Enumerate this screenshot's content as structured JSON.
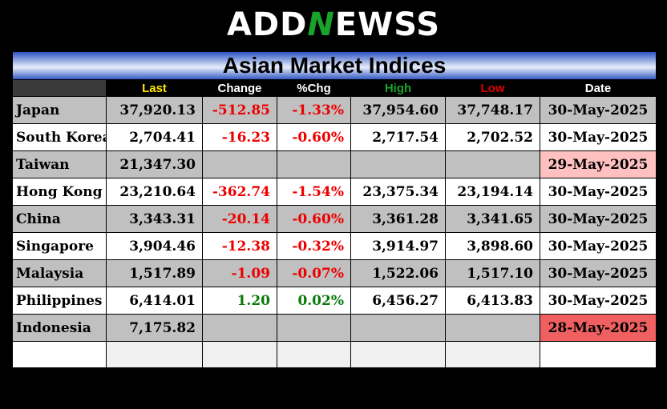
{
  "logo": {
    "before": "ADD",
    "accent": "N",
    "after": "EWSS",
    "accent_color": "#19a32a"
  },
  "title": "Asian Market Indices",
  "columns": [
    {
      "label": "",
      "color": "#ffffff"
    },
    {
      "label": "Last",
      "color": "#ffe600"
    },
    {
      "label": "Change",
      "color": "#ffffff"
    },
    {
      "label": "%Chg",
      "color": "#ffffff"
    },
    {
      "label": "High",
      "color": "#19a32a"
    },
    {
      "label": "Low",
      "color": "#e00000"
    },
    {
      "label": "Date",
      "color": "#ffffff"
    }
  ],
  "colors": {
    "negative": "#ee0000",
    "positive": "#0a7a0a",
    "date_stale_1": "#ffc0c0",
    "date_stale_2": "#f06060"
  },
  "rows": [
    {
      "name": "Japan",
      "last": "37,920.13",
      "change": "-512.85",
      "pct": "-1.33%",
      "high": "37,954.60",
      "low": "37,748.17",
      "date": "30-May-2025",
      "dir": "neg",
      "date_status": "current"
    },
    {
      "name": "South Korea",
      "last": "2,704.41",
      "change": "-16.23",
      "pct": "-0.60%",
      "high": "2,717.54",
      "low": "2,702.52",
      "date": "30-May-2025",
      "dir": "neg",
      "date_status": "current"
    },
    {
      "name": "Taiwan",
      "last": "21,347.30",
      "change": "",
      "pct": "",
      "high": "",
      "low": "",
      "date": "29-May-2025",
      "dir": "none",
      "date_status": "stale_1"
    },
    {
      "name": "Hong Kong",
      "last": "23,210.64",
      "change": "-362.74",
      "pct": "-1.54%",
      "high": "23,375.34",
      "low": "23,194.14",
      "date": "30-May-2025",
      "dir": "neg",
      "date_status": "current"
    },
    {
      "name": "China",
      "last": "3,343.31",
      "change": "-20.14",
      "pct": "-0.60%",
      "high": "3,361.28",
      "low": "3,341.65",
      "date": "30-May-2025",
      "dir": "neg",
      "date_status": "current"
    },
    {
      "name": "Singapore",
      "last": "3,904.46",
      "change": "-12.38",
      "pct": "-0.32%",
      "high": "3,914.97",
      "low": "3,898.60",
      "date": "30-May-2025",
      "dir": "neg",
      "date_status": "current"
    },
    {
      "name": "Malaysia",
      "last": "1,517.89",
      "change": "-1.09",
      "pct": "-0.07%",
      "high": "1,522.06",
      "low": "1,517.10",
      "date": "30-May-2025",
      "dir": "neg",
      "date_status": "current"
    },
    {
      "name": "Philippines",
      "last": "6,414.01",
      "change": "1.20",
      "pct": "0.02%",
      "high": "6,456.27",
      "low": "6,413.83",
      "date": "30-May-2025",
      "dir": "pos",
      "date_status": "current"
    },
    {
      "name": "Indonesia",
      "last": "7,175.82",
      "change": "",
      "pct": "",
      "high": "",
      "low": "",
      "date": "28-May-2025",
      "dir": "none",
      "date_status": "stale_2"
    }
  ]
}
